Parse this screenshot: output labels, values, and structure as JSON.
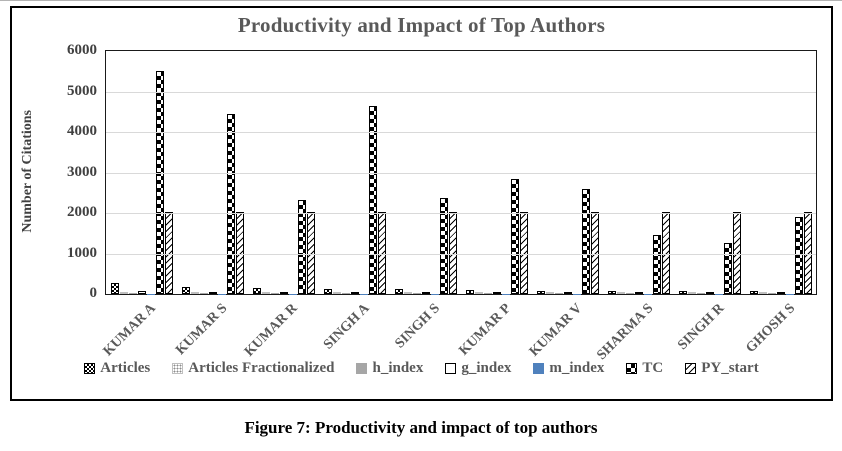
{
  "figure": {
    "caption": "Figure 7: Productivity and impact of top authors"
  },
  "chart_data": {
    "type": "bar",
    "title": "Productivity and Impact of Top Authors",
    "xlabel": "",
    "ylabel": "Number of Citations",
    "ylim": [
      0,
      6000
    ],
    "ytick_step": 1000,
    "grid": true,
    "legend_position": "bottom",
    "categories": [
      "KUMAR A",
      "KUMAR S",
      "KUMAR R",
      "SINGH A",
      "SINGH S",
      "KUMAR P",
      "KUMAR V",
      "SHARMA S",
      "SINGH R",
      "GHOSH S"
    ],
    "series": [
      {
        "name": "Articles",
        "pattern": "checker-fine",
        "values": [
          280,
          170,
          150,
          120,
          130,
          95,
          85,
          65,
          75,
          75
        ]
      },
      {
        "name": "Articles Fractionalized",
        "pattern": "dots-gray",
        "values": [
          60,
          45,
          40,
          35,
          35,
          30,
          30,
          25,
          25,
          25
        ]
      },
      {
        "name": "h_index",
        "pattern": "solid-gray",
        "values": [
          35,
          28,
          25,
          26,
          22,
          22,
          20,
          18,
          18,
          18
        ]
      },
      {
        "name": "g_index",
        "pattern": "outline-white",
        "values": [
          75,
          60,
          55,
          55,
          45,
          50,
          45,
          35,
          30,
          30
        ]
      },
      {
        "name": "m_index",
        "pattern": "solid-blue",
        "values": [
          2,
          2,
          2,
          2,
          2,
          2,
          2,
          2,
          2,
          2
        ]
      },
      {
        "name": "TC",
        "pattern": "checker",
        "values": [
          5500,
          4450,
          2320,
          4650,
          2380,
          2830,
          2600,
          1450,
          1250,
          1900
        ]
      },
      {
        "name": "PY_start",
        "pattern": "diag-hatch",
        "values": [
          2015,
          2015,
          2015,
          2015,
          2015,
          2015,
          2015,
          2015,
          2015,
          2015
        ]
      }
    ],
    "colors": {
      "series_blue": "#4f81bd",
      "series_gray": "#a6a6a6",
      "title_text": "#595959",
      "tick_text": "#404040",
      "gridline": "#d9d9d9"
    }
  }
}
